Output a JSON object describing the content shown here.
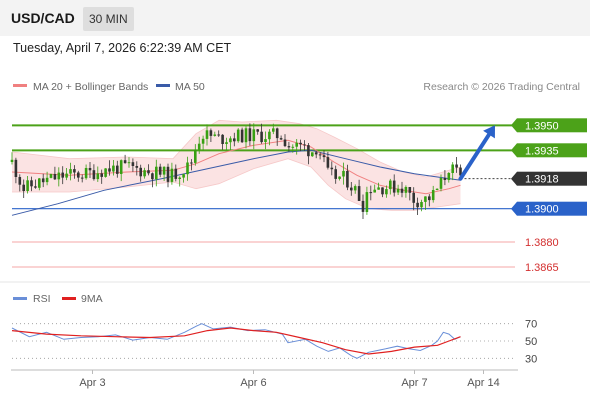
{
  "header": {
    "pair": "USD/CAD",
    "timeframe": "30 MIN"
  },
  "timestamp": "Tuesday, April 7, 2026 6:22:39 AM CET",
  "legend": {
    "ma20": "MA 20 + Bollinger Bands",
    "ma50": "MA 50"
  },
  "copyright": "Research © 2026 Trading Central",
  "colors": {
    "resistance": "#4ca219",
    "current": "#333333",
    "support": "#2a62c9",
    "lower": "#e03131",
    "candle_up": "#37a012",
    "candle_down": "#333333",
    "ma20": "#f08080",
    "ma50": "#3a5ba8",
    "bands": "#fbe3e3",
    "rsi": "#6a8fd8",
    "rsi_ma": "#e02020"
  },
  "chart_data": {
    "type": "candlestick",
    "ylim": [
      1.3856,
      1.3964
    ],
    "xlim": [
      0,
      88
    ],
    "x_ticks": [
      {
        "label": "Apr 3",
        "x": 14
      },
      {
        "label": "Apr 6",
        "x": 42
      },
      {
        "label": "Apr 7",
        "x": 70
      },
      {
        "label": "Apr 14",
        "x": 82
      }
    ],
    "levels": [
      {
        "value": 1.395,
        "label": "1.3950",
        "type": "resistance"
      },
      {
        "value": 1.3935,
        "label": "1.3935",
        "type": "resistance"
      },
      {
        "value": 1.3918,
        "label": "1.3918",
        "type": "current"
      },
      {
        "value": 1.39,
        "label": "1.3900",
        "type": "support"
      },
      {
        "value": 1.388,
        "label": "1.3880",
        "type": "lower"
      },
      {
        "value": 1.3865,
        "label": "1.3865",
        "type": "lower"
      }
    ],
    "forecast": {
      "from_index": 78,
      "from": 1.3918,
      "to_index": 84,
      "to": 1.395
    },
    "price_path": [
      [
        0,
        1.3928
      ],
      [
        2,
        1.3912
      ],
      [
        5,
        1.3916
      ],
      [
        9,
        1.392
      ],
      [
        13,
        1.3921
      ],
      [
        17,
        1.3924
      ],
      [
        20,
        1.3925
      ],
      [
        24,
        1.3922
      ],
      [
        28,
        1.392
      ],
      [
        31,
        1.3926
      ],
      [
        32,
        1.3938
      ],
      [
        33,
        1.3945
      ],
      [
        36,
        1.3942
      ],
      [
        40,
        1.3944
      ],
      [
        44,
        1.3944
      ],
      [
        47,
        1.3944
      ],
      [
        48,
        1.3938
      ],
      [
        51,
        1.3937
      ],
      [
        52,
        1.3934
      ],
      [
        53,
        1.3937
      ],
      [
        54,
        1.393
      ],
      [
        55,
        1.392
      ],
      [
        58,
        1.3918
      ],
      [
        60,
        1.391
      ],
      [
        61,
        1.3902
      ],
      [
        62,
        1.3913
      ],
      [
        65,
        1.3913
      ],
      [
        68,
        1.3913
      ],
      [
        70,
        1.3905
      ],
      [
        71,
        1.3905
      ],
      [
        73,
        1.3907
      ],
      [
        75,
        1.3917
      ],
      [
        76,
        1.3925
      ],
      [
        77,
        1.3922
      ],
      [
        78,
        1.3918
      ]
    ],
    "ma20": [
      [
        0,
        1.3922
      ],
      [
        10,
        1.392
      ],
      [
        20,
        1.3922
      ],
      [
        28,
        1.3923
      ],
      [
        32,
        1.3927
      ],
      [
        36,
        1.3933
      ],
      [
        42,
        1.3938
      ],
      [
        48,
        1.3941
      ],
      [
        52,
        1.3937
      ],
      [
        56,
        1.3928
      ],
      [
        60,
        1.392
      ],
      [
        64,
        1.3914
      ],
      [
        68,
        1.3911
      ],
      [
        72,
        1.3909
      ],
      [
        76,
        1.3912
      ],
      [
        78,
        1.3914
      ]
    ],
    "ma50": [
      [
        0,
        1.3896
      ],
      [
        8,
        1.3903
      ],
      [
        16,
        1.3911
      ],
      [
        26,
        1.3918
      ],
      [
        34,
        1.3924
      ],
      [
        42,
        1.393
      ],
      [
        48,
        1.3934
      ],
      [
        52,
        1.3935
      ],
      [
        58,
        1.393
      ],
      [
        64,
        1.3925
      ],
      [
        70,
        1.3921
      ],
      [
        74,
        1.3919
      ],
      [
        78,
        1.3917
      ]
    ],
    "bollinger_upper": [
      [
        0,
        1.3934
      ],
      [
        10,
        1.393
      ],
      [
        20,
        1.3931
      ],
      [
        28,
        1.393
      ],
      [
        32,
        1.3945
      ],
      [
        36,
        1.3953
      ],
      [
        40,
        1.3952
      ],
      [
        46,
        1.3953
      ],
      [
        50,
        1.3951
      ],
      [
        53,
        1.3948
      ],
      [
        56,
        1.3943
      ],
      [
        60,
        1.3936
      ],
      [
        64,
        1.3928
      ],
      [
        68,
        1.3922
      ],
      [
        72,
        1.3919
      ],
      [
        76,
        1.3923
      ],
      [
        78,
        1.3925
      ]
    ],
    "bollinger_lower": [
      [
        0,
        1.391
      ],
      [
        10,
        1.391
      ],
      [
        20,
        1.3913
      ],
      [
        28,
        1.3916
      ],
      [
        32,
        1.3912
      ],
      [
        36,
        1.3915
      ],
      [
        42,
        1.3924
      ],
      [
        48,
        1.393
      ],
      [
        52,
        1.3925
      ],
      [
        55,
        1.3914
      ],
      [
        58,
        1.3906
      ],
      [
        62,
        1.39
      ],
      [
        66,
        1.3899
      ],
      [
        70,
        1.3899
      ],
      [
        74,
        1.3901
      ],
      [
        78,
        1.3903
      ]
    ],
    "rsi": {
      "legend": {
        "rsi": "RSI",
        "ma": "9MA"
      },
      "ylim": [
        20,
        80
      ],
      "ticks": [
        70,
        50,
        30
      ],
      "rsi_path": [
        [
          0,
          65
        ],
        [
          3,
          55
        ],
        [
          6,
          60
        ],
        [
          9,
          52
        ],
        [
          12,
          54
        ],
        [
          15,
          55
        ],
        [
          18,
          57
        ],
        [
          21,
          51
        ],
        [
          24,
          54
        ],
        [
          27,
          52
        ],
        [
          30,
          60
        ],
        [
          32,
          67
        ],
        [
          33,
          70
        ],
        [
          35,
          64
        ],
        [
          38,
          66
        ],
        [
          41,
          62
        ],
        [
          44,
          63
        ],
        [
          47,
          58
        ],
        [
          48,
          48
        ],
        [
          51,
          52
        ],
        [
          53,
          44
        ],
        [
          55,
          38
        ],
        [
          57,
          42
        ],
        [
          59,
          33
        ],
        [
          60,
          30
        ],
        [
          62,
          37
        ],
        [
          65,
          41
        ],
        [
          67,
          44
        ],
        [
          69,
          41
        ],
        [
          71,
          39
        ],
        [
          73,
          45
        ],
        [
          74,
          50
        ],
        [
          75,
          60
        ],
        [
          76,
          58
        ],
        [
          77,
          52
        ],
        [
          78,
          55
        ]
      ],
      "ma_path": [
        [
          0,
          62
        ],
        [
          6,
          58
        ],
        [
          12,
          56
        ],
        [
          18,
          55
        ],
        [
          24,
          54
        ],
        [
          30,
          56
        ],
        [
          34,
          62
        ],
        [
          38,
          65
        ],
        [
          42,
          62
        ],
        [
          46,
          60
        ],
        [
          50,
          54
        ],
        [
          54,
          48
        ],
        [
          58,
          40
        ],
        [
          62,
          35
        ],
        [
          66,
          38
        ],
        [
          70,
          43
        ],
        [
          74,
          45
        ],
        [
          76,
          50
        ],
        [
          78,
          55
        ]
      ]
    }
  }
}
